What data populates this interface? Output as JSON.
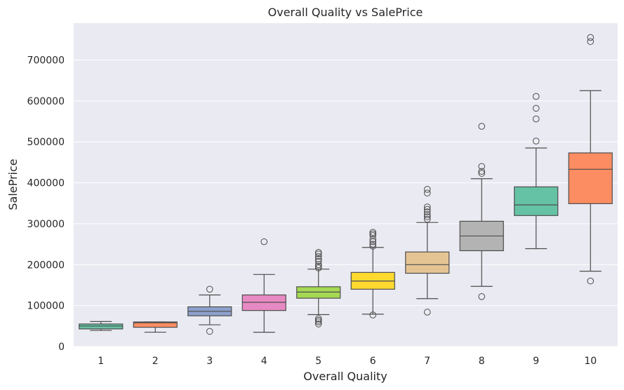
{
  "chart_data": {
    "type": "box",
    "title": "Overall Quality vs SalePrice",
    "xlabel": "Overall Quality",
    "ylabel": "SalePrice",
    "ylim": [
      0,
      790000
    ],
    "yticks": [
      0,
      100000,
      200000,
      300000,
      400000,
      500000,
      600000,
      700000
    ],
    "grid": true,
    "categories": [
      "1",
      "2",
      "3",
      "4",
      "5",
      "6",
      "7",
      "8",
      "9",
      "10"
    ],
    "boxes": [
      {
        "category": "1",
        "whisker_low": 39300,
        "q1": 43000,
        "median": 50000,
        "q3": 55000,
        "whisker_high": 61000,
        "outliers": [],
        "color": "#66c2a5"
      },
      {
        "category": "2",
        "whisker_low": 35000,
        "q1": 47000,
        "median": 58000,
        "q3": 60000,
        "whisker_high": 60000,
        "outliers": [],
        "color": "#fc8d62"
      },
      {
        "category": "3",
        "whisker_low": 53000,
        "q1": 75000,
        "median": 86000,
        "q3": 97000,
        "whisker_high": 126000,
        "outliers": [
          37000,
          140000
        ],
        "color": "#8da0cb"
      },
      {
        "category": "4",
        "whisker_low": 34900,
        "q1": 88000,
        "median": 108000,
        "q3": 126000,
        "whisker_high": 176000,
        "outliers": [
          256000
        ],
        "color": "#e78ac3"
      },
      {
        "category": "5",
        "whisker_low": 78000,
        "q1": 118000,
        "median": 133000,
        "q3": 146000,
        "whisker_high": 189000,
        "outliers": [
          55000,
          60000,
          64000,
          68000,
          192000,
          196000,
          200000,
          208000,
          214000,
          220000,
          226000,
          230000
        ],
        "color": "#a6d854"
      },
      {
        "category": "6",
        "whisker_low": 79000,
        "q1": 140000,
        "median": 160000,
        "q3": 181000,
        "whisker_high": 242000,
        "outliers": [
          77000,
          245000,
          250000,
          256000,
          262000,
          271000,
          275000,
          279000
        ],
        "color": "#ffd92f"
      },
      {
        "category": "7",
        "whisker_low": 117000,
        "q1": 179000,
        "median": 200000,
        "q3": 231000,
        "whisker_high": 303000,
        "outliers": [
          84000,
          311000,
          317000,
          322000,
          329000,
          335000,
          341000,
          375000,
          384000
        ],
        "color": "#e5c494"
      },
      {
        "category": "8",
        "whisker_low": 147000,
        "q1": 234000,
        "median": 270000,
        "q3": 306000,
        "whisker_high": 410000,
        "outliers": [
          122000,
          423000,
          428000,
          440000,
          538000
        ],
        "color": "#b3b3b3"
      },
      {
        "category": "9",
        "whisker_low": 239000,
        "q1": 320000,
        "median": 346000,
        "q3": 390000,
        "whisker_high": 485000,
        "outliers": [
          502000,
          556000,
          582000,
          611000
        ],
        "color": "#66c2a5"
      },
      {
        "category": "10",
        "whisker_low": 184000,
        "q1": 349000,
        "median": 433000,
        "q3": 473000,
        "whisker_high": 625000,
        "outliers": [
          160000,
          745000,
          755000
        ],
        "color": "#fc8d62"
      }
    ]
  }
}
